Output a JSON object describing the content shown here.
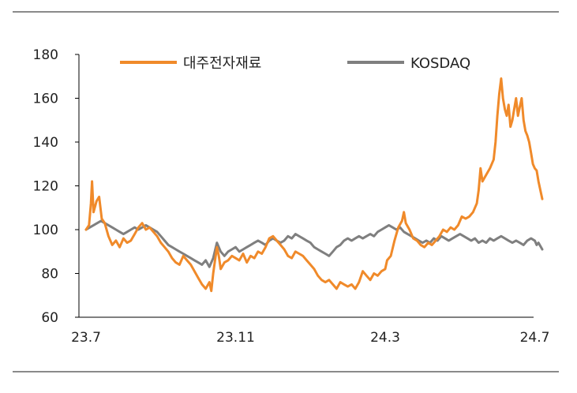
{
  "chart_data": {
    "type": "line",
    "title": "",
    "xlabel": "",
    "ylabel": "",
    "ylim": [
      60,
      180
    ],
    "yticks": [
      60,
      80,
      100,
      120,
      140,
      160,
      180
    ],
    "xticks": [
      {
        "label": "23.7",
        "x": 0
      },
      {
        "label": "23.11",
        "x": 4
      },
      {
        "label": "24.3",
        "x": 8
      },
      {
        "label": "24.7",
        "x": 12
      }
    ],
    "xlim": [
      0,
      12.3
    ],
    "legend_position": "top",
    "series": [
      {
        "name": "대주전자재료",
        "color": "#f08a2a",
        "points": [
          [
            0,
            100
          ],
          [
            0.08,
            102
          ],
          [
            0.13,
            112
          ],
          [
            0.16,
            122
          ],
          [
            0.2,
            108
          ],
          [
            0.28,
            113
          ],
          [
            0.35,
            115
          ],
          [
            0.42,
            105
          ],
          [
            0.5,
            103
          ],
          [
            0.6,
            97
          ],
          [
            0.7,
            93
          ],
          [
            0.8,
            95
          ],
          [
            0.9,
            92
          ],
          [
            1.0,
            96
          ],
          [
            1.1,
            94
          ],
          [
            1.2,
            95
          ],
          [
            1.3,
            98
          ],
          [
            1.4,
            101
          ],
          [
            1.5,
            103
          ],
          [
            1.6,
            100
          ],
          [
            1.7,
            101
          ],
          [
            1.8,
            99
          ],
          [
            1.9,
            97
          ],
          [
            2.0,
            94
          ],
          [
            2.1,
            92
          ],
          [
            2.2,
            90
          ],
          [
            2.3,
            87
          ],
          [
            2.4,
            85
          ],
          [
            2.5,
            84
          ],
          [
            2.6,
            88
          ],
          [
            2.7,
            86
          ],
          [
            2.8,
            84
          ],
          [
            2.9,
            81
          ],
          [
            3.0,
            78
          ],
          [
            3.1,
            75
          ],
          [
            3.2,
            73
          ],
          [
            3.3,
            76
          ],
          [
            3.35,
            72
          ],
          [
            3.4,
            80
          ],
          [
            3.45,
            86
          ],
          [
            3.5,
            92
          ],
          [
            3.55,
            88
          ],
          [
            3.6,
            82
          ],
          [
            3.7,
            85
          ],
          [
            3.8,
            86
          ],
          [
            3.9,
            88
          ],
          [
            4.0,
            87
          ],
          [
            4.1,
            86
          ],
          [
            4.2,
            89
          ],
          [
            4.3,
            85
          ],
          [
            4.4,
            88
          ],
          [
            4.5,
            87
          ],
          [
            4.6,
            90
          ],
          [
            4.7,
            89
          ],
          [
            4.8,
            92
          ],
          [
            4.9,
            96
          ],
          [
            5.0,
            97
          ],
          [
            5.1,
            95
          ],
          [
            5.2,
            93
          ],
          [
            5.3,
            91
          ],
          [
            5.4,
            88
          ],
          [
            5.5,
            87
          ],
          [
            5.6,
            90
          ],
          [
            5.7,
            89
          ],
          [
            5.8,
            88
          ],
          [
            5.9,
            86
          ],
          [
            6.0,
            84
          ],
          [
            6.1,
            82
          ],
          [
            6.2,
            79
          ],
          [
            6.3,
            77
          ],
          [
            6.4,
            76
          ],
          [
            6.5,
            77
          ],
          [
            6.6,
            75
          ],
          [
            6.7,
            73
          ],
          [
            6.8,
            76
          ],
          [
            6.9,
            75
          ],
          [
            7.0,
            74
          ],
          [
            7.1,
            75
          ],
          [
            7.2,
            73
          ],
          [
            7.3,
            76
          ],
          [
            7.4,
            81
          ],
          [
            7.5,
            79
          ],
          [
            7.6,
            77
          ],
          [
            7.7,
            80
          ],
          [
            7.8,
            79
          ],
          [
            7.9,
            81
          ],
          [
            8.0,
            82
          ],
          [
            8.05,
            86
          ],
          [
            8.15,
            88
          ],
          [
            8.25,
            95
          ],
          [
            8.35,
            101
          ],
          [
            8.45,
            104
          ],
          [
            8.5,
            108
          ],
          [
            8.55,
            103
          ],
          [
            8.65,
            100
          ],
          [
            8.75,
            96
          ],
          [
            8.85,
            95
          ],
          [
            8.95,
            93
          ],
          [
            9.05,
            92
          ],
          [
            9.15,
            94
          ],
          [
            9.25,
            93
          ],
          [
            9.35,
            95
          ],
          [
            9.45,
            97
          ],
          [
            9.55,
            100
          ],
          [
            9.65,
            99
          ],
          [
            9.75,
            101
          ],
          [
            9.85,
            100
          ],
          [
            9.95,
            102
          ],
          [
            10.05,
            106
          ],
          [
            10.15,
            105
          ],
          [
            10.25,
            106
          ],
          [
            10.35,
            108
          ],
          [
            10.45,
            112
          ],
          [
            10.5,
            118
          ],
          [
            10.55,
            128
          ],
          [
            10.6,
            122
          ],
          [
            10.7,
            125
          ],
          [
            10.8,
            128
          ],
          [
            10.9,
            132
          ],
          [
            10.95,
            140
          ],
          [
            11.0,
            152
          ],
          [
            11.05,
            162
          ],
          [
            11.1,
            169
          ],
          [
            11.15,
            160
          ],
          [
            11.2,
            155
          ],
          [
            11.25,
            152
          ],
          [
            11.3,
            157
          ],
          [
            11.35,
            147
          ],
          [
            11.4,
            150
          ],
          [
            11.45,
            155
          ],
          [
            11.5,
            160
          ],
          [
            11.55,
            152
          ],
          [
            11.6,
            156
          ],
          [
            11.65,
            160
          ],
          [
            11.7,
            150
          ],
          [
            11.75,
            145
          ],
          [
            11.8,
            143
          ],
          [
            11.85,
            140
          ],
          [
            11.9,
            135
          ],
          [
            11.95,
            130
          ],
          [
            12.0,
            128
          ],
          [
            12.05,
            127
          ],
          [
            12.1,
            122
          ],
          [
            12.15,
            118
          ],
          [
            12.2,
            114
          ]
        ]
      },
      {
        "name": "KOSDAQ",
        "color": "#7f7f7f",
        "points": [
          [
            0,
            100
          ],
          [
            0.1,
            101
          ],
          [
            0.2,
            102
          ],
          [
            0.3,
            103
          ],
          [
            0.4,
            104
          ],
          [
            0.5,
            103
          ],
          [
            0.6,
            102
          ],
          [
            0.7,
            101
          ],
          [
            0.8,
            100
          ],
          [
            0.9,
            99
          ],
          [
            1.0,
            98
          ],
          [
            1.1,
            99
          ],
          [
            1.2,
            100
          ],
          [
            1.3,
            101
          ],
          [
            1.4,
            100
          ],
          [
            1.5,
            101
          ],
          [
            1.6,
            102
          ],
          [
            1.7,
            101
          ],
          [
            1.8,
            100
          ],
          [
            1.9,
            99
          ],
          [
            2.0,
            97
          ],
          [
            2.1,
            95
          ],
          [
            2.2,
            93
          ],
          [
            2.3,
            92
          ],
          [
            2.4,
            91
          ],
          [
            2.5,
            90
          ],
          [
            2.6,
            89
          ],
          [
            2.7,
            88
          ],
          [
            2.8,
            87
          ],
          [
            2.9,
            86
          ],
          [
            3.0,
            85
          ],
          [
            3.1,
            84
          ],
          [
            3.2,
            86
          ],
          [
            3.3,
            83
          ],
          [
            3.4,
            87
          ],
          [
            3.5,
            94
          ],
          [
            3.6,
            90
          ],
          [
            3.7,
            88
          ],
          [
            3.8,
            90
          ],
          [
            3.9,
            91
          ],
          [
            4.0,
            92
          ],
          [
            4.1,
            90
          ],
          [
            4.2,
            91
          ],
          [
            4.3,
            92
          ],
          [
            4.4,
            93
          ],
          [
            4.5,
            94
          ],
          [
            4.6,
            95
          ],
          [
            4.7,
            94
          ],
          [
            4.8,
            93
          ],
          [
            4.9,
            95
          ],
          [
            5.0,
            96
          ],
          [
            5.1,
            95
          ],
          [
            5.2,
            94
          ],
          [
            5.3,
            95
          ],
          [
            5.4,
            97
          ],
          [
            5.5,
            96
          ],
          [
            5.6,
            98
          ],
          [
            5.7,
            97
          ],
          [
            5.8,
            96
          ],
          [
            5.9,
            95
          ],
          [
            6.0,
            94
          ],
          [
            6.1,
            92
          ],
          [
            6.2,
            91
          ],
          [
            6.3,
            90
          ],
          [
            6.4,
            89
          ],
          [
            6.5,
            88
          ],
          [
            6.6,
            90
          ],
          [
            6.7,
            92
          ],
          [
            6.8,
            93
          ],
          [
            6.9,
            95
          ],
          [
            7.0,
            96
          ],
          [
            7.1,
            95
          ],
          [
            7.2,
            96
          ],
          [
            7.3,
            97
          ],
          [
            7.4,
            96
          ],
          [
            7.5,
            97
          ],
          [
            7.6,
            98
          ],
          [
            7.7,
            97
          ],
          [
            7.8,
            99
          ],
          [
            7.9,
            100
          ],
          [
            8.0,
            101
          ],
          [
            8.1,
            102
          ],
          [
            8.2,
            101
          ],
          [
            8.3,
            100
          ],
          [
            8.4,
            101
          ],
          [
            8.5,
            99
          ],
          [
            8.6,
            98
          ],
          [
            8.7,
            97
          ],
          [
            8.8,
            96
          ],
          [
            8.9,
            95
          ],
          [
            9.0,
            94
          ],
          [
            9.1,
            95
          ],
          [
            9.2,
            94
          ],
          [
            9.3,
            96
          ],
          [
            9.4,
            95
          ],
          [
            9.5,
            97
          ],
          [
            9.6,
            96
          ],
          [
            9.7,
            95
          ],
          [
            9.8,
            96
          ],
          [
            9.9,
            97
          ],
          [
            10.0,
            98
          ],
          [
            10.1,
            97
          ],
          [
            10.2,
            96
          ],
          [
            10.3,
            95
          ],
          [
            10.4,
            96
          ],
          [
            10.5,
            94
          ],
          [
            10.6,
            95
          ],
          [
            10.7,
            94
          ],
          [
            10.8,
            96
          ],
          [
            10.9,
            95
          ],
          [
            11.0,
            96
          ],
          [
            11.1,
            97
          ],
          [
            11.2,
            96
          ],
          [
            11.3,
            95
          ],
          [
            11.4,
            94
          ],
          [
            11.5,
            95
          ],
          [
            11.6,
            94
          ],
          [
            11.7,
            93
          ],
          [
            11.8,
            95
          ],
          [
            11.9,
            96
          ],
          [
            12.0,
            95
          ],
          [
            12.05,
            93
          ],
          [
            12.1,
            94
          ],
          [
            12.2,
            91
          ]
        ]
      }
    ]
  }
}
